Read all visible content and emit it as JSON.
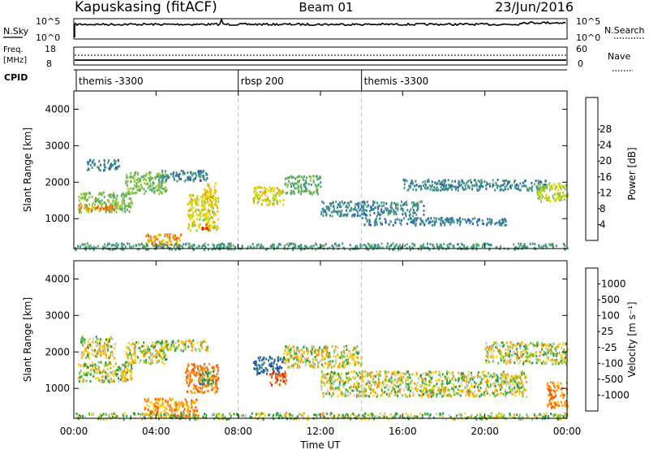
{
  "header": {
    "station": "Kapuskasing (fitACF)",
    "beam": "Beam 01",
    "date": "23/Jun/2016"
  },
  "sky_panel": {
    "left_label": "N.Sky",
    "left_ticks": [
      "10^5",
      "10^0"
    ],
    "right_ticks": [
      "10^5",
      "10^0"
    ],
    "right_label": "N.Search"
  },
  "freq_panel": {
    "left_label_1": "Freq.",
    "left_label_2": "[MHz]",
    "left_ticks": [
      "18",
      "8"
    ],
    "right_ticks": [
      "60",
      "0"
    ],
    "right_label": "Nave"
  },
  "cpid_panel": {
    "label": "CPID",
    "segments": [
      {
        "text": "themis -3300",
        "start_hour": 0
      },
      {
        "text": "rbsp 200",
        "start_hour": 8
      },
      {
        "text": "themis -3300",
        "start_hour": 14
      }
    ]
  },
  "x_axis": {
    "label": "Time UT",
    "range_hours": [
      0,
      24
    ],
    "ticks": [
      "00:00",
      "04:00",
      "08:00",
      "12:00",
      "16:00",
      "20:00",
      "00:00"
    ]
  },
  "power_panel": {
    "ylabel": "Slant Range [km]",
    "yticks": [
      "1000",
      "2000",
      "3000",
      "4000"
    ],
    "colorbar_label": "Power [dB]",
    "colorbar_ticks": [
      "4",
      "8",
      "12",
      "16",
      "20",
      "24",
      "28"
    ],
    "colors": [
      "#1414e6",
      "#2f5fb3",
      "#3c8f8c",
      "#55a86a",
      "#8cc832",
      "#e0d200",
      "#f0a000",
      "#f06000",
      "#dd0000"
    ]
  },
  "velocity_panel": {
    "ylabel": "Slant Range [km]",
    "yticks": [
      "1000",
      "2000",
      "3000",
      "4000"
    ],
    "colorbar_label": "Velocity [m s⁻¹]",
    "colorbar_ticks": [
      "1000",
      "500",
      "100",
      "25",
      "-25",
      "-100",
      "-500",
      "-1000"
    ],
    "colors": [
      "#2040b8",
      "#2f6e9c",
      "#2a9a4a",
      "#6cc83c",
      "#c8c8c0",
      "#ffd000",
      "#ff9a00",
      "#ff5a00",
      "#e00000"
    ]
  },
  "chart_data": [
    {
      "type": "heatmap",
      "title": "Power [dB]",
      "xlabel": "Time UT",
      "ylabel": "Slant Range [km]",
      "xlim": [
        0,
        24
      ],
      "ylim": [
        180,
        4500
      ],
      "clim": [
        0,
        30
      ],
      "regions": [
        {
          "t0": 0.2,
          "t1": 2.8,
          "r0": 1200,
          "r1": 1750,
          "value": 14
        },
        {
          "t0": 0.2,
          "t1": 2.0,
          "r0": 1250,
          "r1": 1400,
          "value": 24
        },
        {
          "t0": 0.6,
          "t1": 2.2,
          "r0": 2350,
          "r1": 2650,
          "value": 8
        },
        {
          "t0": 2.5,
          "t1": 4.5,
          "r0": 1700,
          "r1": 2300,
          "value": 14
        },
        {
          "t0": 4.0,
          "t1": 6.5,
          "r0": 2050,
          "r1": 2350,
          "value": 8
        },
        {
          "t0": 5.5,
          "t1": 7.0,
          "r0": 700,
          "r1": 1700,
          "value": 18
        },
        {
          "t0": 6.3,
          "t1": 6.9,
          "r0": 1400,
          "r1": 2000,
          "value": 20
        },
        {
          "t0": 6.2,
          "t1": 6.6,
          "r0": 700,
          "r1": 900,
          "value": 27
        },
        {
          "t0": 3.4,
          "t1": 5.2,
          "r0": 250,
          "r1": 600,
          "value": 22
        },
        {
          "t0": 8.7,
          "t1": 10.2,
          "r0": 1400,
          "r1": 1900,
          "value": 18
        },
        {
          "t0": 10.2,
          "t1": 12.0,
          "r0": 1700,
          "r1": 2200,
          "value": 12
        },
        {
          "t0": 12.0,
          "t1": 17.0,
          "r0": 1100,
          "r1": 1500,
          "value": 8
        },
        {
          "t0": 14.0,
          "t1": 21.0,
          "r0": 850,
          "r1": 1050,
          "value": 7
        },
        {
          "t0": 16.0,
          "t1": 23.0,
          "r0": 1800,
          "r1": 2100,
          "value": 8
        },
        {
          "t0": 22.5,
          "t1": 24.0,
          "r0": 1500,
          "r1": 2000,
          "value": 16
        },
        {
          "t0": 0.0,
          "t1": 24.0,
          "r0": 180,
          "r1": 350,
          "value": 10
        }
      ]
    },
    {
      "type": "heatmap",
      "title": "Velocity [m s⁻¹]",
      "xlabel": "Time UT",
      "ylabel": "Slant Range [km]",
      "xlim": [
        0,
        24
      ],
      "ylim": [
        180,
        4500
      ],
      "clim": [
        -1000,
        1000
      ],
      "regions": [
        {
          "t0": 0.2,
          "t1": 2.8,
          "r0": 1200,
          "r1": 1750,
          "value": 0
        },
        {
          "t0": 0.3,
          "t1": 2.0,
          "r0": 1850,
          "r1": 2450,
          "value": 0
        },
        {
          "t0": 2.5,
          "t1": 4.5,
          "r0": 1700,
          "r1": 2300,
          "value": 0
        },
        {
          "t0": 4.0,
          "t1": 6.5,
          "r0": 2050,
          "r1": 2350,
          "value": 0
        },
        {
          "t0": 5.4,
          "t1": 7.0,
          "r0": 900,
          "r1": 1700,
          "value": -300
        },
        {
          "t0": 6.0,
          "t1": 6.8,
          "r0": 1100,
          "r1": 1500,
          "value": 150
        },
        {
          "t0": 3.4,
          "t1": 6.0,
          "r0": 250,
          "r1": 750,
          "value": -200
        },
        {
          "t0": 8.7,
          "t1": 10.2,
          "r0": 1400,
          "r1": 1900,
          "value": 400
        },
        {
          "t0": 9.5,
          "t1": 10.3,
          "r0": 1100,
          "r1": 1500,
          "value": -400
        },
        {
          "t0": 10.2,
          "t1": 14.0,
          "r0": 1600,
          "r1": 2200,
          "value": 0
        },
        {
          "t0": 12.0,
          "t1": 22.0,
          "r0": 800,
          "r1": 1500,
          "value": 0
        },
        {
          "t0": 20.0,
          "t1": 24.0,
          "r0": 1700,
          "r1": 2300,
          "value": 0
        },
        {
          "t0": 23.0,
          "t1": 24.0,
          "r0": 500,
          "r1": 1200,
          "value": -250
        },
        {
          "t0": 0.0,
          "t1": 24.0,
          "r0": 180,
          "r1": 350,
          "value": 50
        }
      ]
    }
  ]
}
